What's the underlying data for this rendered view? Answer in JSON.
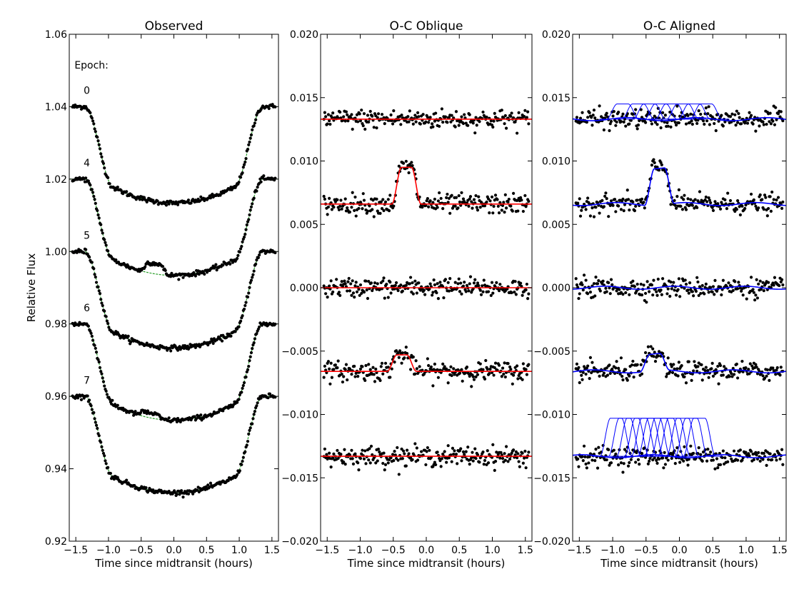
{
  "chart_data": [
    {
      "type": "scatter",
      "title": "Observed",
      "xlabel": "Time since midtransit (hours)",
      "ylabel": "Relative Flux",
      "xlim": [
        -1.6,
        1.6
      ],
      "ylim": [
        0.92,
        1.06
      ],
      "xticks": [
        -1.5,
        -1.0,
        -0.5,
        0.0,
        0.5,
        1.0,
        1.5
      ],
      "xtick_labels": [
        "−1.5",
        "−1.0",
        "−0.5",
        "0.0",
        "0.5",
        "1.0",
        "1.5"
      ],
      "yticks": [
        0.92,
        0.94,
        0.96,
        0.98,
        1.0,
        1.02,
        1.04,
        1.06
      ],
      "ytick_labels": [
        "0.92",
        "0.94",
        "0.96",
        "0.98",
        "1.00",
        "1.02",
        "1.04",
        "1.06"
      ],
      "annotations": [
        {
          "text": "Epoch:",
          "x": -1.52,
          "y": 1.0505
        },
        {
          "text": "0",
          "x": -1.38,
          "y": 1.0435
        },
        {
          "text": "4",
          "x": -1.38,
          "y": 1.0235
        },
        {
          "text": "5",
          "x": -1.38,
          "y": 1.0035
        },
        {
          "text": "6",
          "x": -1.38,
          "y": 0.9835
        },
        {
          "text": "7",
          "x": -1.38,
          "y": 0.9635
        }
      ],
      "series": [
        {
          "epoch": "0",
          "baseline": 1.04,
          "depth": 0.0266,
          "points_color": "#000000",
          "model_color": "#2ca02c"
        },
        {
          "epoch": "4",
          "baseline": 1.02,
          "depth": 0.0066,
          "points_color": "#000000",
          "model_color": "#2ca02c",
          "spot": {
            "center": -0.3,
            "width": 0.22,
            "height": 0.0029
          }
        },
        {
          "epoch": "5",
          "baseline": 1.0,
          "depth": 0.0066,
          "points_color": "#000000",
          "model_color": "#2ca02c"
        },
        {
          "epoch": "6",
          "baseline": 0.98,
          "depth": 0.0066,
          "points_color": "#000000",
          "model_color": "#2ca02c",
          "spot": {
            "center": -0.37,
            "width": 0.22,
            "height": 0.0013
          }
        },
        {
          "epoch": "7",
          "baseline": 0.96,
          "depth": 0.0066,
          "points_color": "#000000",
          "model_color": "#2ca02c"
        }
      ],
      "transit_shape": {
        "ingress_start": -1.36,
        "full_start": -0.92,
        "limb_darkening": 0.35
      }
    },
    {
      "type": "scatter",
      "title": "O-C Oblique",
      "xlabel": "Time since midtransit (hours)",
      "xlim": [
        -1.6,
        1.6
      ],
      "ylim": [
        -0.02,
        0.02
      ],
      "xticks": [
        -1.5,
        -1.0,
        -0.5,
        0.0,
        0.5,
        1.0,
        1.5
      ],
      "xtick_labels": [
        "−1.5",
        "−1.0",
        "−0.5",
        "0.0",
        "0.5",
        "1.0",
        "1.5"
      ],
      "yticks": [
        -0.02,
        -0.015,
        -0.01,
        -0.005,
        0.0,
        0.005,
        0.01,
        0.015,
        0.02
      ],
      "ytick_labels": [
        "−0.020",
        "−0.015",
        "−0.010",
        "−0.005",
        "0.000",
        "0.005",
        "0.010",
        "0.015",
        "0.020"
      ],
      "model_color": "#ff0000",
      "series": [
        {
          "offset": 0.0133
        },
        {
          "offset": 0.0066,
          "bump": {
            "center": -0.3,
            "width": 0.22,
            "height": 0.0029
          }
        },
        {
          "offset": 0.0
        },
        {
          "offset": -0.0066,
          "bump": {
            "center": -0.37,
            "width": 0.22,
            "height": 0.0013
          }
        },
        {
          "offset": -0.0133
        }
      ]
    },
    {
      "type": "scatter",
      "title": "O-C Aligned",
      "xlabel": "Time since midtransit (hours)",
      "xlim": [
        -1.6,
        1.6
      ],
      "ylim": [
        -0.02,
        0.02
      ],
      "xticks": [
        -1.5,
        -1.0,
        -0.5,
        0.0,
        0.5,
        1.0,
        1.5
      ],
      "xtick_labels": [
        "−1.5",
        "−1.0",
        "−0.5",
        "0.0",
        "0.5",
        "1.0",
        "1.5"
      ],
      "yticks": [
        -0.02,
        -0.015,
        -0.01,
        -0.005,
        0.0,
        0.005,
        0.01,
        0.015,
        0.02
      ],
      "ytick_labels": [
        "−0.020",
        "−0.015",
        "−0.010",
        "−0.005",
        "0.000",
        "0.005",
        "0.010",
        "0.015",
        "0.020"
      ],
      "model_color": "#0000ff",
      "series": [
        {
          "offset": 0.0133,
          "bump_family": {
            "centers": [
              -0.85,
              -0.62,
              -0.45,
              -0.28,
              -0.12,
              0.05,
              0.22,
              0.4
            ],
            "height": 0.0012
          }
        },
        {
          "offset": 0.0066,
          "bump": {
            "center": -0.3,
            "width": 0.22,
            "height": 0.0029
          }
        },
        {
          "offset": 0.0
        },
        {
          "offset": -0.0066,
          "bump": {
            "center": -0.37,
            "width": 0.22,
            "height": 0.0013
          }
        },
        {
          "offset": -0.0133,
          "bump_family": {
            "centers": [
              -0.95,
              -0.82,
              -0.7,
              -0.58,
              -0.48,
              -0.38,
              -0.28,
              -0.18,
              -0.08,
              0.05,
              0.18,
              0.3
            ],
            "height": 0.003
          }
        }
      ]
    }
  ]
}
